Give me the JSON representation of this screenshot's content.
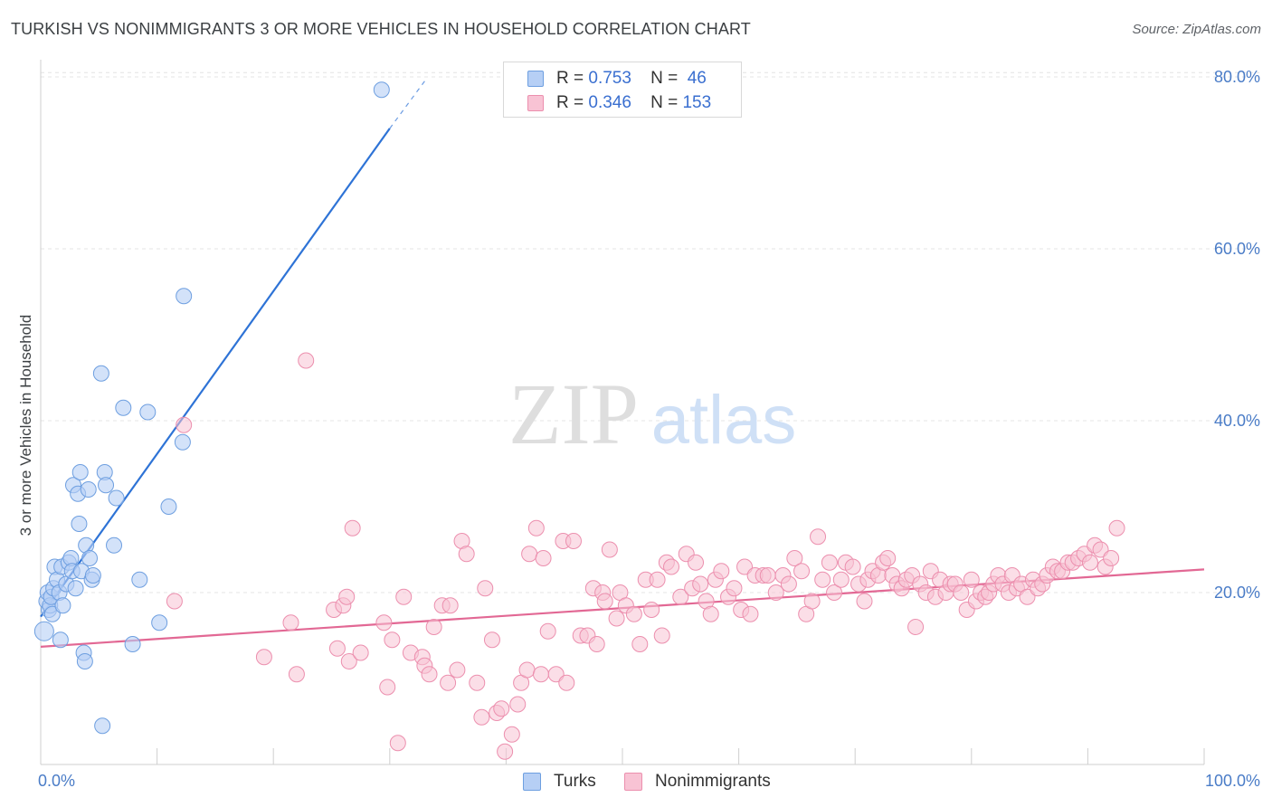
{
  "title": "TURKISH VS NONIMMIGRANTS 3 OR MORE VEHICLES IN HOUSEHOLD CORRELATION CHART",
  "source": "Source: ZipAtlas.com",
  "watermark": {
    "zip": "ZIP",
    "atlas": "atlas"
  },
  "legend_stats": [
    {
      "r_label": "R =",
      "r_value": "0.753",
      "n_label": "N =",
      "n_value": "46"
    },
    {
      "r_label": "R =",
      "r_value": "0.346",
      "n_label": "N =",
      "n_value": "153"
    }
  ],
  "colors": {
    "turks_fill": "#b6cff5",
    "turks_stroke": "#6e9fe0",
    "turks_line": "#2e73d6",
    "nonimm_fill": "#f8c3d4",
    "nonimm_stroke": "#ec8fae",
    "nonimm_line": "#e26894",
    "tick_text": "#4a7cc7"
  },
  "chart_data": {
    "type": "scatter",
    "title": "TURKISH VS NONIMMIGRANTS 3 OR MORE VEHICLES IN HOUSEHOLD CORRELATION CHART",
    "xlabel": "",
    "ylabel": "3 or more Vehicles in Household",
    "xlim": [
      0,
      100
    ],
    "ylim": [
      0,
      82
    ],
    "x_tick_labels": [
      "0.0%",
      "100.0%"
    ],
    "y_ticks": [
      20,
      40,
      60,
      80
    ],
    "y_tick_labels": [
      "20.0%",
      "40.0%",
      "60.0%",
      "80.0%"
    ],
    "grid": true,
    "legend_placement": "top-center",
    "series": [
      {
        "name": "Turks",
        "r": 0.753,
        "n": 46,
        "trend": {
          "x0": 0,
          "y0": 17.2,
          "x1": 30,
          "y1": 74.0,
          "dashed_to_x": 33,
          "dashed_to_y": 79.5
        },
        "points": [
          [
            0.3,
            15.5
          ],
          [
            0.5,
            19.0
          ],
          [
            0.6,
            20.0
          ],
          [
            0.7,
            18.0
          ],
          [
            0.8,
            18.5
          ],
          [
            0.9,
            19.5
          ],
          [
            1.0,
            17.5
          ],
          [
            1.1,
            20.5
          ],
          [
            1.2,
            23.0
          ],
          [
            1.4,
            21.5
          ],
          [
            1.6,
            20.0
          ],
          [
            1.7,
            14.5
          ],
          [
            1.8,
            23.0
          ],
          [
            1.9,
            18.5
          ],
          [
            2.2,
            21.0
          ],
          [
            2.4,
            23.5
          ],
          [
            2.6,
            24.0
          ],
          [
            2.7,
            22.5
          ],
          [
            2.8,
            32.5
          ],
          [
            3.0,
            20.5
          ],
          [
            3.2,
            31.5
          ],
          [
            3.3,
            28.0
          ],
          [
            3.4,
            34.0
          ],
          [
            3.5,
            22.5
          ],
          [
            3.7,
            13.0
          ],
          [
            3.8,
            12.0
          ],
          [
            3.9,
            25.5
          ],
          [
            4.1,
            32.0
          ],
          [
            4.2,
            24.0
          ],
          [
            4.4,
            21.5
          ],
          [
            4.5,
            22.0
          ],
          [
            5.2,
            45.5
          ],
          [
            5.3,
            4.5
          ],
          [
            5.5,
            34.0
          ],
          [
            5.6,
            32.5
          ],
          [
            6.3,
            25.5
          ],
          [
            6.5,
            31.0
          ],
          [
            7.1,
            41.5
          ],
          [
            7.9,
            14.0
          ],
          [
            8.5,
            21.5
          ],
          [
            9.2,
            41.0
          ],
          [
            10.2,
            16.5
          ],
          [
            11.0,
            30.0
          ],
          [
            12.2,
            37.5
          ],
          [
            12.3,
            54.5
          ],
          [
            29.3,
            78.5
          ]
        ]
      },
      {
        "name": "Nonimmigrants",
        "r": 0.346,
        "n": 153,
        "trend": {
          "x0": 0,
          "y0": 13.7,
          "x1": 100,
          "y1": 22.7
        },
        "points": [
          [
            11.5,
            19.0
          ],
          [
            12.3,
            39.5
          ],
          [
            19.2,
            12.5
          ],
          [
            21.5,
            16.5
          ],
          [
            22.0,
            10.5
          ],
          [
            22.8,
            47.0
          ],
          [
            25.2,
            18.0
          ],
          [
            25.5,
            13.5
          ],
          [
            26.0,
            18.5
          ],
          [
            26.3,
            19.5
          ],
          [
            26.5,
            12.0
          ],
          [
            26.8,
            27.5
          ],
          [
            27.5,
            13.0
          ],
          [
            29.5,
            16.5
          ],
          [
            29.8,
            9.0
          ],
          [
            30.2,
            14.5
          ],
          [
            30.7,
            2.5
          ],
          [
            31.2,
            19.5
          ],
          [
            31.8,
            13.0
          ],
          [
            32.8,
            12.5
          ],
          [
            33.0,
            11.5
          ],
          [
            33.4,
            10.5
          ],
          [
            33.8,
            16.0
          ],
          [
            34.5,
            18.5
          ],
          [
            35.0,
            9.5
          ],
          [
            35.2,
            18.5
          ],
          [
            35.8,
            11.0
          ],
          [
            36.2,
            26.0
          ],
          [
            36.6,
            24.5
          ],
          [
            37.5,
            9.5
          ],
          [
            37.9,
            5.5
          ],
          [
            38.2,
            20.5
          ],
          [
            38.8,
            14.5
          ],
          [
            39.2,
            6.0
          ],
          [
            39.6,
            6.5
          ],
          [
            39.9,
            1.5
          ],
          [
            40.5,
            3.5
          ],
          [
            41.0,
            7.0
          ],
          [
            41.3,
            9.5
          ],
          [
            41.8,
            11.0
          ],
          [
            42.0,
            24.5
          ],
          [
            42.6,
            27.5
          ],
          [
            43.0,
            10.5
          ],
          [
            43.2,
            24.0
          ],
          [
            43.6,
            15.5
          ],
          [
            44.3,
            10.5
          ],
          [
            44.9,
            26.0
          ],
          [
            45.2,
            9.5
          ],
          [
            45.8,
            26.0
          ],
          [
            46.4,
            15.0
          ],
          [
            47.0,
            15.0
          ],
          [
            47.5,
            20.5
          ],
          [
            47.8,
            14.0
          ],
          [
            48.3,
            20.0
          ],
          [
            48.5,
            19.0
          ],
          [
            48.9,
            25.0
          ],
          [
            49.5,
            17.0
          ],
          [
            49.8,
            20.0
          ],
          [
            50.3,
            18.5
          ],
          [
            51.0,
            17.5
          ],
          [
            51.5,
            14.0
          ],
          [
            52.0,
            21.5
          ],
          [
            52.5,
            18.0
          ],
          [
            53.0,
            21.5
          ],
          [
            53.4,
            15.0
          ],
          [
            53.8,
            23.5
          ],
          [
            54.2,
            23.0
          ],
          [
            55.0,
            19.5
          ],
          [
            55.5,
            24.5
          ],
          [
            56.0,
            20.5
          ],
          [
            56.3,
            23.5
          ],
          [
            56.7,
            21.0
          ],
          [
            57.2,
            19.0
          ],
          [
            57.6,
            17.5
          ],
          [
            58.0,
            21.5
          ],
          [
            58.5,
            22.5
          ],
          [
            59.1,
            19.5
          ],
          [
            59.6,
            20.5
          ],
          [
            60.2,
            18.0
          ],
          [
            60.5,
            23.0
          ],
          [
            61.0,
            17.5
          ],
          [
            61.4,
            22.0
          ],
          [
            62.1,
            22.0
          ],
          [
            62.5,
            22.0
          ],
          [
            63.2,
            20.0
          ],
          [
            63.8,
            22.0
          ],
          [
            64.3,
            21.0
          ],
          [
            64.8,
            24.0
          ],
          [
            65.4,
            22.5
          ],
          [
            65.8,
            17.5
          ],
          [
            66.3,
            19.0
          ],
          [
            66.8,
            26.5
          ],
          [
            67.2,
            21.5
          ],
          [
            67.8,
            23.5
          ],
          [
            68.2,
            20.0
          ],
          [
            68.8,
            21.5
          ],
          [
            69.2,
            23.5
          ],
          [
            69.8,
            23.0
          ],
          [
            70.3,
            21.0
          ],
          [
            70.8,
            19.0
          ],
          [
            71.1,
            21.5
          ],
          [
            71.5,
            22.5
          ],
          [
            72.0,
            22.0
          ],
          [
            72.4,
            23.5
          ],
          [
            72.8,
            24.0
          ],
          [
            73.2,
            22.0
          ],
          [
            73.6,
            21.0
          ],
          [
            74.0,
            20.5
          ],
          [
            74.4,
            21.5
          ],
          [
            74.9,
            22.0
          ],
          [
            75.2,
            16.0
          ],
          [
            75.6,
            21.0
          ],
          [
            76.1,
            20.0
          ],
          [
            76.5,
            22.5
          ],
          [
            76.9,
            19.5
          ],
          [
            77.3,
            21.5
          ],
          [
            77.8,
            20.0
          ],
          [
            78.2,
            21.0
          ],
          [
            78.6,
            21.0
          ],
          [
            79.1,
            20.0
          ],
          [
            79.6,
            18.0
          ],
          [
            80.0,
            21.5
          ],
          [
            80.4,
            19.0
          ],
          [
            80.8,
            20.0
          ],
          [
            81.2,
            19.5
          ],
          [
            81.5,
            20.0
          ],
          [
            81.9,
            21.0
          ],
          [
            82.3,
            22.0
          ],
          [
            82.7,
            21.0
          ],
          [
            83.2,
            20.0
          ],
          [
            83.5,
            22.0
          ],
          [
            83.9,
            20.5
          ],
          [
            84.3,
            21.0
          ],
          [
            84.8,
            19.5
          ],
          [
            85.3,
            21.5
          ],
          [
            85.7,
            20.5
          ],
          [
            86.1,
            21.0
          ],
          [
            86.5,
            22.0
          ],
          [
            87.0,
            23.0
          ],
          [
            87.4,
            22.5
          ],
          [
            87.8,
            22.5
          ],
          [
            88.3,
            23.5
          ],
          [
            88.7,
            23.5
          ],
          [
            89.2,
            24.0
          ],
          [
            89.7,
            24.5
          ],
          [
            90.2,
            23.5
          ],
          [
            90.6,
            25.5
          ],
          [
            91.1,
            25.0
          ],
          [
            91.5,
            23.0
          ],
          [
            92.0,
            24.0
          ],
          [
            92.5,
            27.5
          ]
        ]
      }
    ]
  },
  "bottom_legend": [
    {
      "label": "Turks"
    },
    {
      "label": "Nonimmigrants"
    }
  ]
}
